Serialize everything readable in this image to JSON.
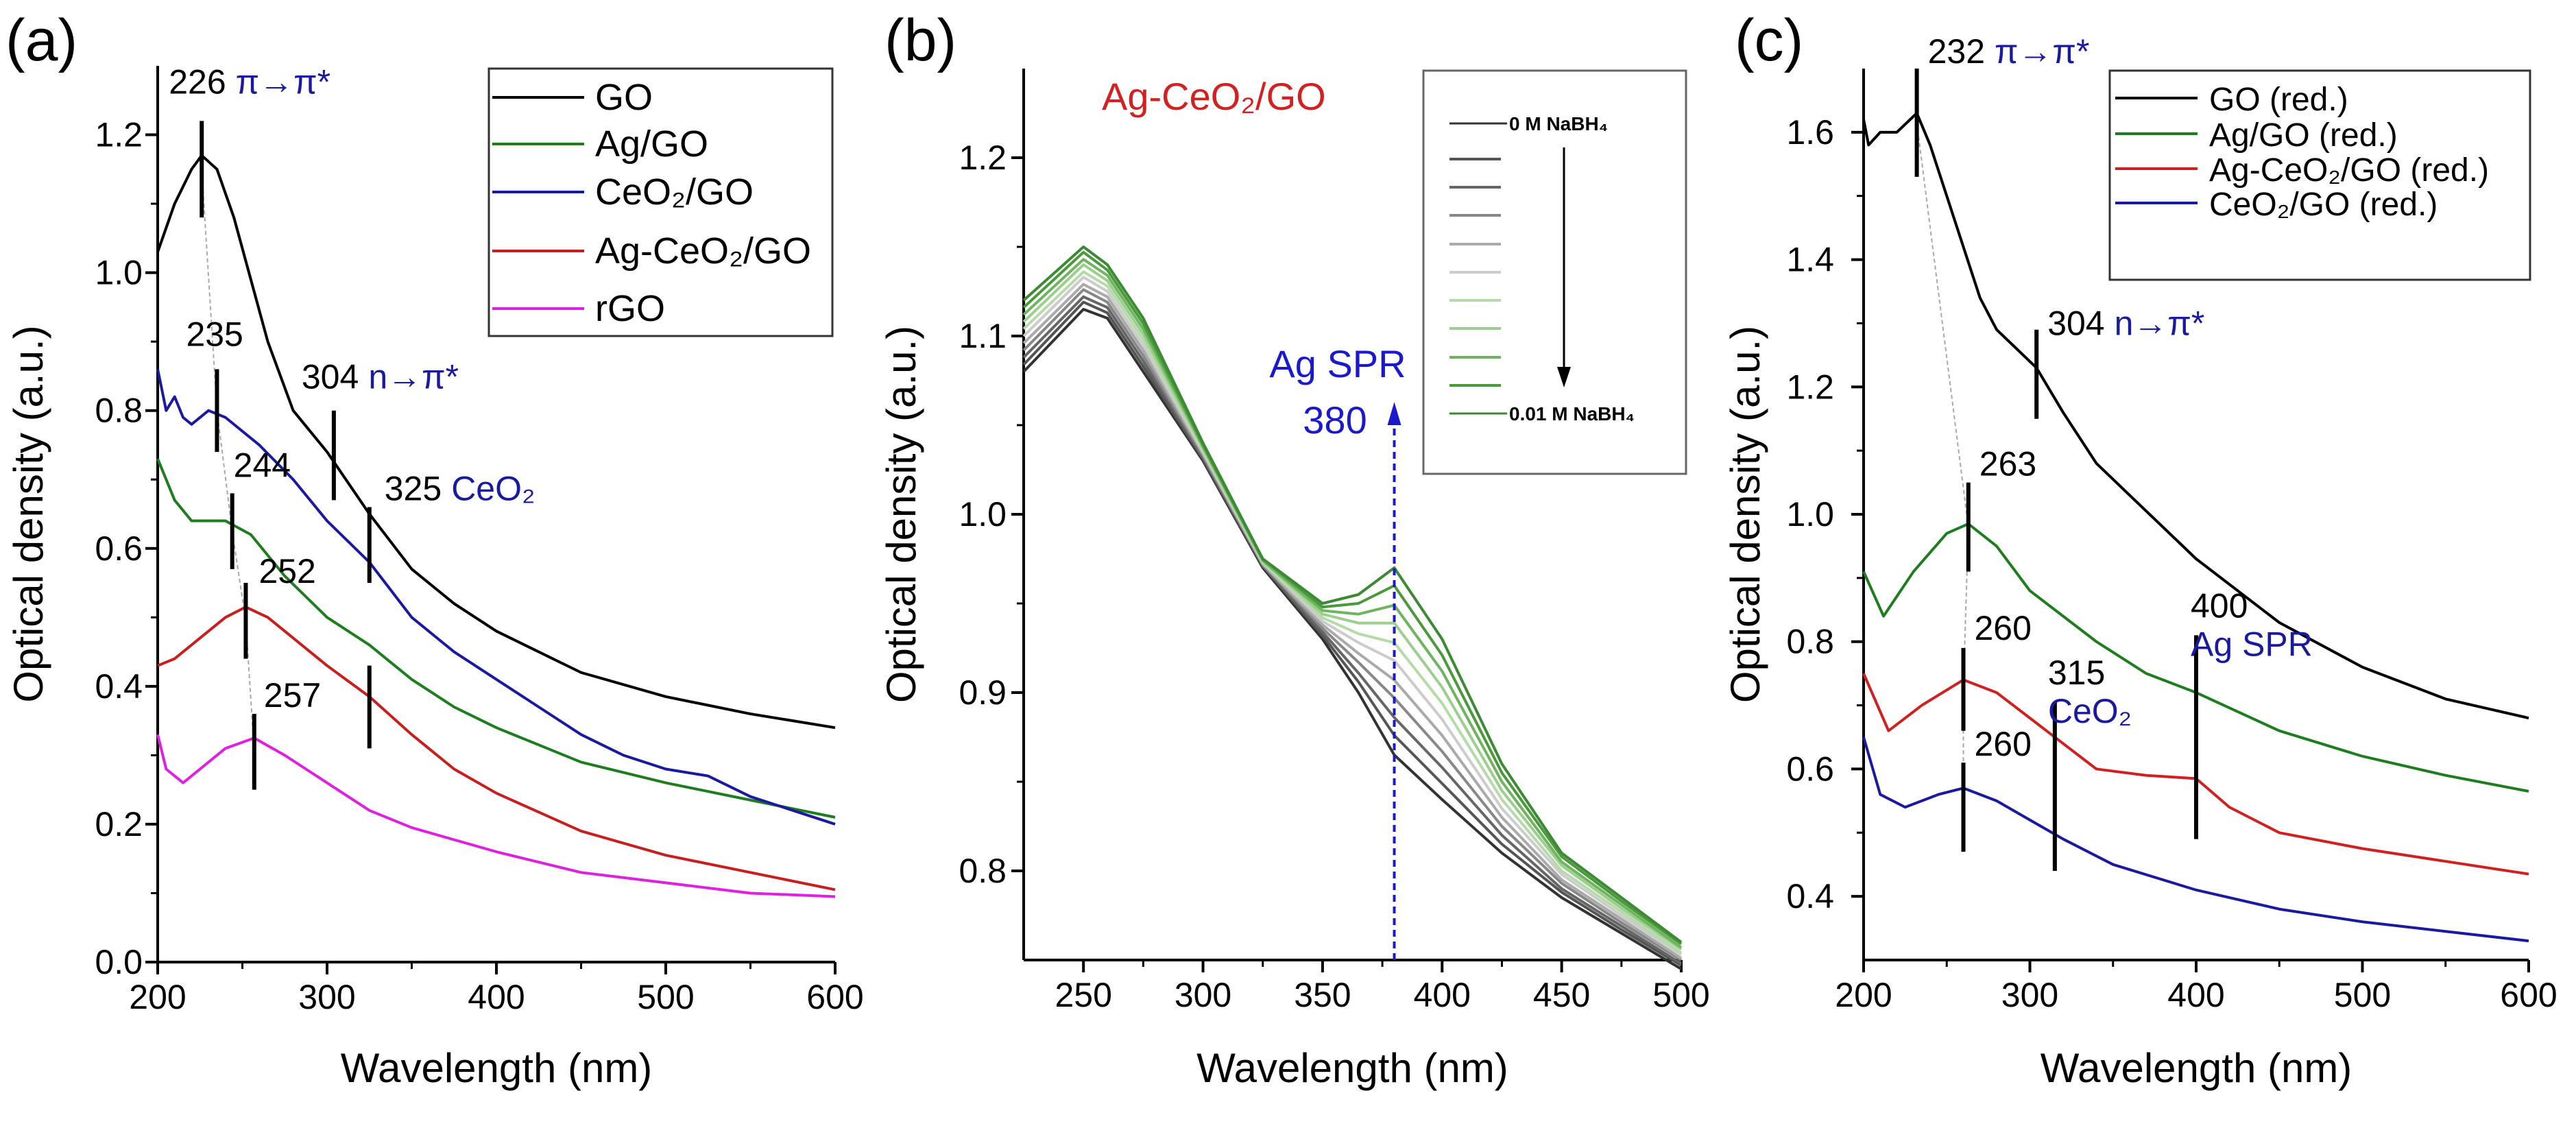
{
  "chart_data": [
    {
      "panel_label": "(a)",
      "type": "line",
      "xlabel": "Wavelength (nm)",
      "ylabel": "Optical density (a.u.)",
      "xlim": [
        200,
        600
      ],
      "ylim": [
        0,
        1.3
      ],
      "xticks": [
        "200",
        "300",
        "400",
        "500",
        "600"
      ],
      "yticks": [
        "0.0",
        "0.2",
        "0.4",
        "0.6",
        "0.8",
        "1.0",
        "1.2"
      ],
      "legend_position": "top-right",
      "series": [
        {
          "name": "GO",
          "color": "#000000",
          "x": [
            200,
            210,
            220,
            226,
            235,
            245,
            255,
            265,
            280,
            300,
            325,
            350,
            375,
            400,
            450,
            500,
            550,
            600
          ],
          "y": [
            1.03,
            1.1,
            1.15,
            1.17,
            1.15,
            1.08,
            0.99,
            0.9,
            0.8,
            0.74,
            0.65,
            0.57,
            0.52,
            0.48,
            0.42,
            0.385,
            0.36,
            0.34
          ]
        },
        {
          "name": "Ag/GO",
          "color": "#1e7d1e",
          "x": [
            200,
            210,
            220,
            240,
            255,
            275,
            300,
            325,
            350,
            375,
            400,
            450,
            500,
            550,
            600
          ],
          "y": [
            0.73,
            0.67,
            0.64,
            0.64,
            0.62,
            0.56,
            0.5,
            0.46,
            0.41,
            0.37,
            0.34,
            0.29,
            0.26,
            0.235,
            0.21
          ]
        },
        {
          "name": "CeO₂/GO",
          "color": "#1a1aa0",
          "x": [
            200,
            205,
            210,
            215,
            220,
            230,
            240,
            260,
            280,
            300,
            325,
            350,
            375,
            400,
            425,
            450,
            475,
            500,
            525,
            550,
            575,
            600
          ],
          "y": [
            0.86,
            0.8,
            0.82,
            0.79,
            0.78,
            0.8,
            0.79,
            0.75,
            0.7,
            0.64,
            0.58,
            0.5,
            0.45,
            0.41,
            0.37,
            0.33,
            0.3,
            0.28,
            0.27,
            0.24,
            0.22,
            0.2
          ]
        },
        {
          "name": "Ag-CeO₂/GO",
          "color": "#c81e1e",
          "x": [
            200,
            210,
            225,
            240,
            252,
            265,
            280,
            300,
            325,
            350,
            375,
            400,
            450,
            500,
            550,
            600
          ],
          "y": [
            0.43,
            0.44,
            0.47,
            0.5,
            0.515,
            0.5,
            0.47,
            0.43,
            0.385,
            0.33,
            0.28,
            0.245,
            0.19,
            0.155,
            0.13,
            0.105
          ]
        },
        {
          "name": "rGO",
          "color": "#e020e0",
          "x": [
            200,
            205,
            215,
            225,
            240,
            257,
            275,
            300,
            325,
            350,
            400,
            450,
            500,
            550,
            600
          ],
          "y": [
            0.33,
            0.28,
            0.26,
            0.28,
            0.31,
            0.325,
            0.3,
            0.26,
            0.22,
            0.195,
            0.16,
            0.13,
            0.115,
            0.1,
            0.095
          ]
        }
      ],
      "annotations": [
        {
          "x": 226,
          "y_range": [
            1.08,
            1.22
          ],
          "value": "226",
          "note": "π→π*"
        },
        {
          "x": 235,
          "y_range": [
            0.74,
            0.86
          ],
          "value": "235",
          "note": ""
        },
        {
          "x": 244,
          "y_range": [
            0.57,
            0.68
          ],
          "value": "244",
          "note": ""
        },
        {
          "x": 252,
          "y_range": [
            0.44,
            0.55
          ],
          "value": "252",
          "note": ""
        },
        {
          "x": 257,
          "y_range": [
            0.25,
            0.36
          ],
          "value": "257",
          "note": ""
        },
        {
          "x": 304,
          "y_range": [
            0.67,
            0.8
          ],
          "value": "304",
          "note": "n→π*"
        },
        {
          "x": 325,
          "y_range": [
            0.55,
            0.66
          ],
          "value": "325",
          "note": "CeO₂"
        },
        {
          "x": 325,
          "y_range": [
            0.31,
            0.43
          ],
          "value": "",
          "note": ""
        }
      ]
    },
    {
      "panel_label": "(b)",
      "type": "line",
      "title": "Ag-CeO₂/GO",
      "xlabel": "Wavelength (nm)",
      "ylabel": "Optical density (a.u.)",
      "xlim": [
        225,
        500
      ],
      "ylim": [
        0.75,
        1.25
      ],
      "xticks": [
        "250",
        "300",
        "350",
        "400",
        "450",
        "500"
      ],
      "yticks": [
        "0.8",
        "0.9",
        "1.0",
        "1.1",
        "1.2"
      ],
      "legend_position": "top-right",
      "legend_first": "0 M NaBH₄",
      "legend_last": "0.01 M NaBH₄",
      "annotation_text": [
        "Ag SPR",
        "380"
      ],
      "annotation_x": 380,
      "annotation_color": "#1a1acc",
      "x": [
        225,
        250,
        260,
        275,
        300,
        325,
        350,
        365,
        380,
        400,
        425,
        450,
        475,
        500
      ],
      "series": [
        {
          "color": "#333333",
          "y": [
            1.08,
            1.115,
            1.11,
            1.08,
            1.03,
            0.97,
            0.93,
            0.9,
            0.865,
            0.84,
            0.81,
            0.785,
            0.765,
            0.745
          ]
        },
        {
          "color": "#555555",
          "y": [
            1.084,
            1.119,
            1.113,
            1.083,
            1.031,
            0.971,
            0.932,
            0.906,
            0.876,
            0.849,
            0.815,
            0.788,
            0.767,
            0.747
          ]
        },
        {
          "color": "#666666",
          "y": [
            1.088,
            1.122,
            1.116,
            1.086,
            1.032,
            0.971,
            0.934,
            0.911,
            0.886,
            0.858,
            0.82,
            0.79,
            0.769,
            0.748
          ]
        },
        {
          "color": "#888888",
          "y": [
            1.092,
            1.126,
            1.119,
            1.089,
            1.033,
            0.972,
            0.936,
            0.917,
            0.897,
            0.867,
            0.825,
            0.793,
            0.771,
            0.75
          ]
        },
        {
          "color": "#aaaaaa",
          "y": [
            1.096,
            1.129,
            1.122,
            1.092,
            1.034,
            0.972,
            0.938,
            0.922,
            0.907,
            0.876,
            0.83,
            0.795,
            0.773,
            0.751
          ]
        },
        {
          "color": "#cccccc",
          "y": [
            1.1,
            1.133,
            1.125,
            1.095,
            1.035,
            0.973,
            0.94,
            0.928,
            0.918,
            0.885,
            0.835,
            0.798,
            0.775,
            0.753
          ]
        },
        {
          "color": "#b5dba8",
          "y": [
            1.104,
            1.136,
            1.128,
            1.098,
            1.036,
            0.973,
            0.942,
            0.933,
            0.928,
            0.894,
            0.84,
            0.8,
            0.777,
            0.754
          ]
        },
        {
          "color": "#9ccf8e",
          "y": [
            1.108,
            1.14,
            1.131,
            1.101,
            1.037,
            0.974,
            0.944,
            0.939,
            0.939,
            0.903,
            0.845,
            0.803,
            0.779,
            0.756
          ]
        },
        {
          "color": "#6fb55f",
          "y": [
            1.112,
            1.143,
            1.134,
            1.104,
            1.038,
            0.974,
            0.946,
            0.944,
            0.949,
            0.912,
            0.85,
            0.805,
            0.781,
            0.757
          ]
        },
        {
          "color": "#4a9a3c",
          "y": [
            1.116,
            1.147,
            1.137,
            1.107,
            1.039,
            0.975,
            0.948,
            0.95,
            0.96,
            0.921,
            0.855,
            0.808,
            0.783,
            0.759
          ]
        },
        {
          "color": "#3d8a35",
          "y": [
            1.12,
            1.15,
            1.14,
            1.11,
            1.04,
            0.975,
            0.95,
            0.955,
            0.97,
            0.93,
            0.86,
            0.81,
            0.785,
            0.76
          ]
        }
      ]
    },
    {
      "panel_label": "(c)",
      "type": "line",
      "xlabel": "Wavelength (nm)",
      "ylabel": "Optical density (a.u.)",
      "xlim": [
        200,
        600
      ],
      "ylim": [
        0.3,
        1.7
      ],
      "xticks": [
        "200",
        "300",
        "400",
        "500",
        "600"
      ],
      "yticks": [
        "0.4",
        "0.6",
        "0.8",
        "1.0",
        "1.2",
        "1.4",
        "1.6"
      ],
      "legend_position": "top-right",
      "series": [
        {
          "name": "GO (red.)",
          "color": "#000000",
          "x": [
            200,
            203,
            210,
            220,
            232,
            240,
            255,
            270,
            280,
            304,
            320,
            340,
            360,
            400,
            450,
            500,
            550,
            600
          ],
          "y": [
            1.62,
            1.58,
            1.6,
            1.6,
            1.63,
            1.58,
            1.46,
            1.34,
            1.29,
            1.23,
            1.16,
            1.08,
            1.03,
            0.93,
            0.83,
            0.76,
            0.71,
            0.68
          ]
        },
        {
          "name": "Ag/GO (red.)",
          "color": "#1e7d1e",
          "x": [
            200,
            212,
            230,
            250,
            263,
            280,
            300,
            340,
            370,
            400,
            450,
            500,
            550,
            600
          ],
          "y": [
            0.91,
            0.84,
            0.91,
            0.97,
            0.985,
            0.95,
            0.88,
            0.8,
            0.75,
            0.72,
            0.66,
            0.62,
            0.59,
            0.565
          ]
        },
        {
          "name": "Ag-CeO₂/GO (red.)",
          "color": "#d02020",
          "x": [
            200,
            215,
            235,
            260,
            280,
            300,
            320,
            340,
            370,
            400,
            420,
            450,
            500,
            550,
            600
          ],
          "y": [
            0.75,
            0.66,
            0.7,
            0.74,
            0.72,
            0.68,
            0.64,
            0.6,
            0.59,
            0.585,
            0.54,
            0.5,
            0.475,
            0.455,
            0.435
          ]
        },
        {
          "name": "CeO₂/GO (red.)",
          "color": "#1a1aa0",
          "x": [
            200,
            210,
            225,
            245,
            260,
            280,
            300,
            320,
            350,
            400,
            450,
            500,
            550,
            600
          ],
          "y": [
            0.65,
            0.56,
            0.54,
            0.56,
            0.57,
            0.55,
            0.52,
            0.49,
            0.45,
            0.41,
            0.38,
            0.36,
            0.345,
            0.33
          ]
        }
      ],
      "annotations": [
        {
          "x": 232,
          "y_range": [
            1.53,
            1.7
          ],
          "value": "232",
          "note": "π→π*"
        },
        {
          "x": 304,
          "y_range": [
            1.15,
            1.29
          ],
          "value": "304",
          "note": "n→π*"
        },
        {
          "x": 263,
          "y_range": [
            0.91,
            1.05
          ],
          "value": "263",
          "note": ""
        },
        {
          "x": 260,
          "y_range": [
            0.66,
            0.79
          ],
          "value": "260",
          "note": ""
        },
        {
          "x": 260,
          "y_range": [
            0.47,
            0.61
          ],
          "value": "260",
          "note": ""
        },
        {
          "x": 315,
          "y_range": [
            0.44,
            0.705
          ],
          "value": "315",
          "note": "CeO₂"
        },
        {
          "x": 400,
          "y_range": [
            0.49,
            0.81
          ],
          "value": "400",
          "note": "Ag SPR"
        }
      ]
    }
  ]
}
